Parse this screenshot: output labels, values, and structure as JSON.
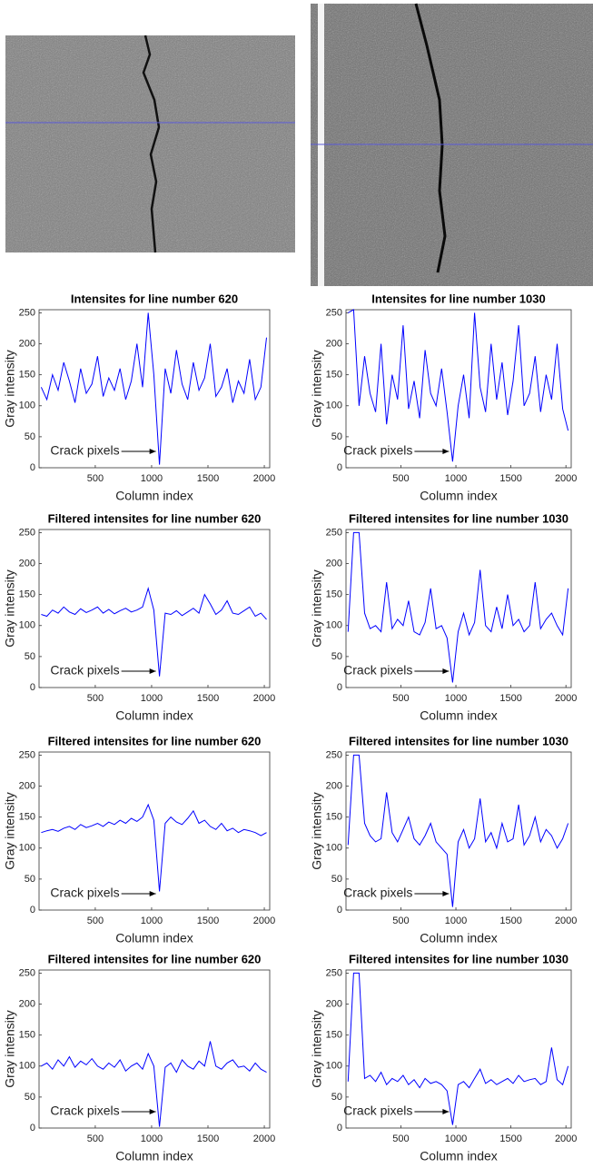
{
  "chart_data": [
    {
      "type": "line",
      "title": "Intensites for line number 620",
      "xlabel": "Column index",
      "ylabel": "Gray intensity",
      "annotation": "Crack pixels",
      "color": "#0000ff",
      "x": [
        20,
        70,
        120,
        170,
        220,
        270,
        320,
        370,
        420,
        470,
        520,
        570,
        620,
        670,
        720,
        770,
        820,
        870,
        920,
        970,
        1020,
        1070,
        1120,
        1170,
        1220,
        1270,
        1320,
        1370,
        1420,
        1470,
        1520,
        1570,
        1620,
        1670,
        1720,
        1770,
        1820,
        1870,
        1920,
        1970,
        2020
      ],
      "values": [
        130,
        110,
        150,
        125,
        170,
        140,
        105,
        160,
        120,
        135,
        180,
        115,
        145,
        125,
        160,
        110,
        140,
        200,
        130,
        250,
        150,
        5,
        160,
        120,
        190,
        135,
        110,
        170,
        125,
        145,
        200,
        115,
        130,
        160,
        105,
        140,
        120,
        175,
        110,
        130,
        210
      ],
      "xlim": [
        1,
        2048
      ],
      "xticks": [
        500,
        1000,
        1500,
        2000
      ],
      "ylim": [
        0,
        255
      ],
      "yticks": [
        0,
        50,
        100,
        150,
        200,
        250
      ]
    },
    {
      "type": "line",
      "title": "Intensites for line number 1030",
      "xlabel": "Column index",
      "ylabel": "Gray intensity",
      "annotation": "Crack pixels",
      "color": "#0000ff",
      "x": [
        20,
        70,
        120,
        170,
        220,
        270,
        320,
        370,
        420,
        470,
        520,
        570,
        620,
        670,
        720,
        770,
        820,
        870,
        920,
        970,
        1020,
        1070,
        1120,
        1170,
        1220,
        1270,
        1320,
        1370,
        1420,
        1470,
        1520,
        1570,
        1620,
        1670,
        1720,
        1770,
        1820,
        1870,
        1920,
        1970,
        2020
      ],
      "values": [
        250,
        255,
        100,
        180,
        120,
        90,
        200,
        70,
        150,
        110,
        230,
        95,
        140,
        80,
        190,
        120,
        100,
        160,
        90,
        10,
        100,
        150,
        80,
        250,
        130,
        90,
        200,
        110,
        170,
        85,
        140,
        230,
        100,
        120,
        180,
        90,
        150,
        110,
        200,
        95,
        60
      ],
      "xlim": [
        1,
        2048
      ],
      "xticks": [
        500,
        1000,
        1500,
        2000
      ],
      "ylim": [
        0,
        255
      ],
      "yticks": [
        0,
        50,
        100,
        150,
        200,
        250
      ]
    },
    {
      "type": "line",
      "title": "Filtered intensites for line number 620",
      "xlabel": "Column index",
      "ylabel": "Gray intensity",
      "annotation": "Crack pixels",
      "color": "#0000ff",
      "x": [
        20,
        70,
        120,
        170,
        220,
        270,
        320,
        370,
        420,
        470,
        520,
        570,
        620,
        670,
        720,
        770,
        820,
        870,
        920,
        970,
        1020,
        1070,
        1120,
        1170,
        1220,
        1270,
        1320,
        1370,
        1420,
        1470,
        1520,
        1570,
        1620,
        1670,
        1720,
        1770,
        1820,
        1870,
        1920,
        1970,
        2020
      ],
      "values": [
        118,
        115,
        125,
        120,
        130,
        122,
        118,
        127,
        121,
        125,
        130,
        120,
        126,
        119,
        124,
        128,
        122,
        125,
        130,
        160,
        125,
        18,
        120,
        118,
        124,
        116,
        122,
        128,
        120,
        150,
        135,
        118,
        125,
        140,
        120,
        118,
        124,
        130,
        115,
        120,
        110
      ],
      "xlim": [
        1,
        2048
      ],
      "xticks": [
        500,
        1000,
        1500,
        2000
      ],
      "ylim": [
        0,
        255
      ],
      "yticks": [
        0,
        50,
        100,
        150,
        200,
        250
      ]
    },
    {
      "type": "line",
      "title": "Filtered intensites for line number 1030",
      "xlabel": "Column index",
      "ylabel": "Gray intensity",
      "annotation": "Crack pixels",
      "color": "#0000ff",
      "x": [
        20,
        70,
        120,
        170,
        220,
        270,
        320,
        370,
        420,
        470,
        520,
        570,
        620,
        670,
        720,
        770,
        820,
        870,
        920,
        970,
        1020,
        1070,
        1120,
        1170,
        1220,
        1270,
        1320,
        1370,
        1420,
        1470,
        1520,
        1570,
        1620,
        1670,
        1720,
        1770,
        1820,
        1870,
        1920,
        1970,
        2020
      ],
      "values": [
        90,
        250,
        250,
        120,
        95,
        100,
        90,
        170,
        95,
        110,
        100,
        140,
        90,
        85,
        105,
        160,
        95,
        100,
        80,
        8,
        90,
        120,
        85,
        105,
        190,
        100,
        90,
        130,
        95,
        150,
        100,
        110,
        90,
        100,
        170,
        95,
        110,
        120,
        100,
        85,
        160
      ],
      "xlim": [
        1,
        2048
      ],
      "xticks": [
        500,
        1000,
        1500,
        2000
      ],
      "ylim": [
        0,
        255
      ],
      "yticks": [
        0,
        50,
        100,
        150,
        200,
        250
      ]
    },
    {
      "type": "line",
      "title": "Filtered intensites for line number 620",
      "xlabel": "Column index",
      "ylabel": "Gray intensity",
      "annotation": "Crack pixels",
      "color": "#0000ff",
      "x": [
        20,
        70,
        120,
        170,
        220,
        270,
        320,
        370,
        420,
        470,
        520,
        570,
        620,
        670,
        720,
        770,
        820,
        870,
        920,
        970,
        1020,
        1070,
        1120,
        1170,
        1220,
        1270,
        1320,
        1370,
        1420,
        1470,
        1520,
        1570,
        1620,
        1670,
        1720,
        1770,
        1820,
        1870,
        1920,
        1970,
        2020
      ],
      "values": [
        125,
        128,
        130,
        127,
        132,
        135,
        130,
        138,
        133,
        136,
        140,
        135,
        142,
        138,
        145,
        140,
        148,
        143,
        150,
        170,
        145,
        30,
        140,
        150,
        142,
        138,
        148,
        160,
        140,
        145,
        135,
        130,
        140,
        128,
        132,
        125,
        130,
        128,
        125,
        120,
        125
      ],
      "xlim": [
        1,
        2048
      ],
      "xticks": [
        500,
        1000,
        1500,
        2000
      ],
      "ylim": [
        0,
        255
      ],
      "yticks": [
        0,
        50,
        100,
        150,
        200,
        250
      ]
    },
    {
      "type": "line",
      "title": "Filtered intensites for line number 1030",
      "xlabel": "Column index",
      "ylabel": "Gray intensity",
      "annotation": "Crack pixels",
      "color": "#0000ff",
      "x": [
        20,
        70,
        120,
        170,
        220,
        270,
        320,
        370,
        420,
        470,
        520,
        570,
        620,
        670,
        720,
        770,
        820,
        870,
        920,
        970,
        1020,
        1070,
        1120,
        1170,
        1220,
        1270,
        1320,
        1370,
        1420,
        1470,
        1520,
        1570,
        1620,
        1670,
        1720,
        1770,
        1820,
        1870,
        1920,
        1970,
        2020
      ],
      "values": [
        105,
        250,
        250,
        140,
        120,
        110,
        115,
        190,
        125,
        110,
        130,
        150,
        115,
        105,
        120,
        140,
        110,
        100,
        90,
        5,
        110,
        130,
        100,
        115,
        180,
        110,
        125,
        100,
        140,
        110,
        115,
        170,
        105,
        120,
        150,
        110,
        130,
        120,
        100,
        115,
        140
      ],
      "xlim": [
        1,
        2048
      ],
      "xticks": [
        500,
        1000,
        1500,
        2000
      ],
      "ylim": [
        0,
        255
      ],
      "yticks": [
        0,
        50,
        100,
        150,
        200,
        250
      ]
    },
    {
      "type": "line",
      "title": "Filtered intensites for line number 620",
      "xlabel": "Column index",
      "ylabel": "Gray intensity",
      "annotation": "Crack pixels",
      "color": "#0000ff",
      "x": [
        20,
        70,
        120,
        170,
        220,
        270,
        320,
        370,
        420,
        470,
        520,
        570,
        620,
        670,
        720,
        770,
        820,
        870,
        920,
        970,
        1020,
        1070,
        1120,
        1170,
        1220,
        1270,
        1320,
        1370,
        1420,
        1470,
        1520,
        1570,
        1620,
        1670,
        1720,
        1770,
        1820,
        1870,
        1920,
        1970,
        2020
      ],
      "values": [
        100,
        105,
        95,
        110,
        100,
        115,
        98,
        108,
        102,
        112,
        100,
        95,
        105,
        98,
        110,
        92,
        100,
        105,
        95,
        120,
        100,
        2,
        98,
        105,
        90,
        110,
        100,
        95,
        108,
        100,
        140,
        100,
        95,
        105,
        110,
        98,
        100,
        92,
        105,
        95,
        90
      ],
      "xlim": [
        1,
        2048
      ],
      "xticks": [
        500,
        1000,
        1500,
        2000
      ],
      "ylim": [
        0,
        255
      ],
      "yticks": [
        0,
        50,
        100,
        150,
        200,
        250
      ]
    },
    {
      "type": "line",
      "title": "Filtered intensites for line number 1030",
      "xlabel": "Column index",
      "ylabel": "Gray intensity",
      "annotation": "Crack pixels",
      "color": "#0000ff",
      "x": [
        20,
        70,
        120,
        170,
        220,
        270,
        320,
        370,
        420,
        470,
        520,
        570,
        620,
        670,
        720,
        770,
        820,
        870,
        920,
        970,
        1020,
        1070,
        1120,
        1170,
        1220,
        1270,
        1320,
        1370,
        1420,
        1470,
        1520,
        1570,
        1620,
        1670,
        1720,
        1770,
        1820,
        1870,
        1920,
        1970,
        2020
      ],
      "values": [
        75,
        250,
        250,
        80,
        85,
        75,
        90,
        70,
        80,
        75,
        85,
        70,
        78,
        65,
        80,
        72,
        75,
        70,
        60,
        5,
        70,
        75,
        65,
        80,
        95,
        72,
        78,
        70,
        75,
        80,
        72,
        85,
        75,
        78,
        80,
        70,
        75,
        130,
        78,
        70,
        100
      ],
      "xlim": [
        1,
        2048
      ],
      "xticks": [
        500,
        1000,
        1500,
        2000
      ],
      "ylim": [
        0,
        255
      ],
      "yticks": [
        0,
        50,
        100,
        150,
        200,
        250
      ]
    }
  ]
}
